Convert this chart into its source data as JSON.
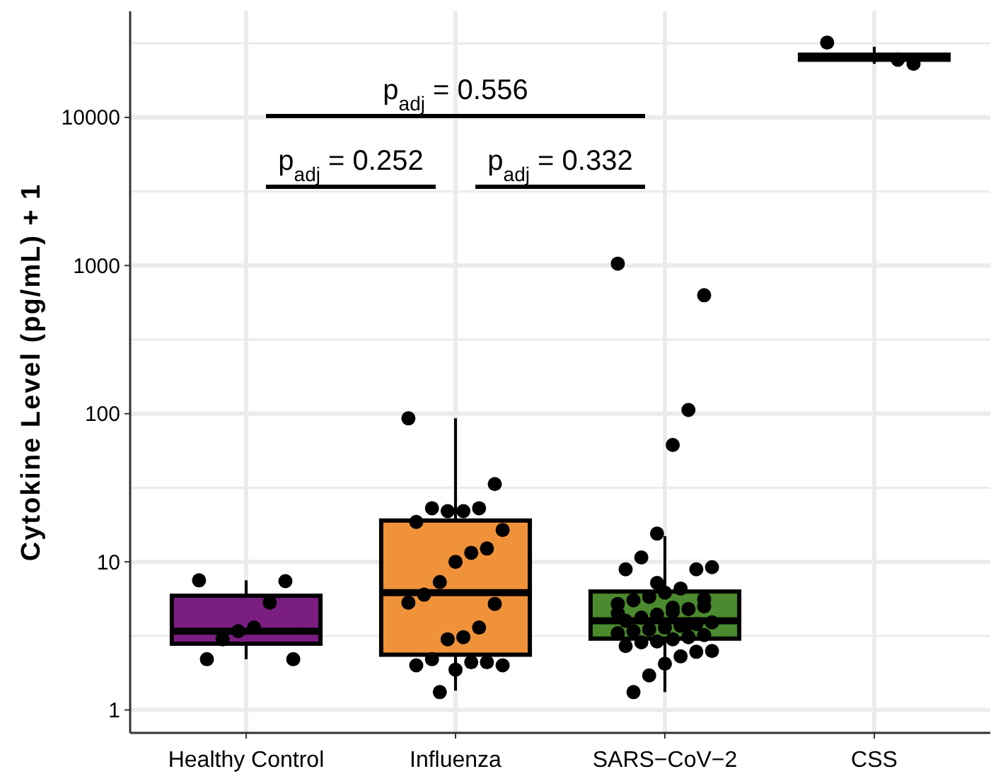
{
  "chart_data": {
    "type": "box",
    "ylabel": "Cytokine Level (pg/mL) + 1",
    "categories": [
      "Healthy Control",
      "Influenza",
      "SARS−CoV−2",
      "CSS"
    ],
    "colors": [
      "#7b1e82",
      "#f0923a",
      "#4b8a2e",
      "#000000"
    ],
    "boxes": [
      {
        "low": 2.2,
        "q1": 2.8,
        "median": 3.4,
        "q3": 5.9,
        "high": 7.5
      },
      {
        "low": 1.35,
        "q1": 2.36,
        "median": 6.2,
        "q3": 19,
        "high": 93
      },
      {
        "low": 1.32,
        "q1": 3.03,
        "median": 4.0,
        "q3": 6.3,
        "high": 14.9
      },
      {
        "low": 23000,
        "q1": 24500,
        "median": 25500,
        "q3": 26500,
        "high": 30000
      }
    ],
    "series": [
      {
        "type": "scatter",
        "color": "#000000",
        "x": [
          "Healthy Control",
          "Healthy Control",
          "Healthy Control",
          "Healthy Control",
          "Healthy Control",
          "Healthy Control",
          "Healthy Control",
          "Healthy Control",
          "Influenza",
          "Influenza",
          "Influenza",
          "Influenza",
          "Influenza",
          "Influenza",
          "Influenza",
          "Influenza",
          "Influenza",
          "Influenza",
          "Influenza",
          "Influenza",
          "Influenza",
          "Influenza",
          "Influenza",
          "Influenza",
          "Influenza",
          "Influenza",
          "Influenza",
          "Influenza",
          "Influenza",
          "Influenza",
          "Influenza",
          "Influenza",
          "Influenza",
          "SARS−CoV−2",
          "SARS−CoV−2",
          "SARS−CoV−2",
          "SARS−CoV−2",
          "SARS−CoV−2",
          "SARS−CoV−2",
          "SARS−CoV−2",
          "SARS−CoV−2",
          "SARS−CoV−2",
          "SARS−CoV−2",
          "SARS−CoV−2",
          "SARS−CoV−2",
          "SARS−CoV−2",
          "SARS−CoV−2",
          "SARS−CoV−2",
          "SARS−CoV−2",
          "SARS−CoV−2",
          "SARS−CoV−2",
          "SARS−CoV−2",
          "SARS−CoV−2",
          "SARS−CoV−2",
          "SARS−CoV−2",
          "SARS−CoV−2",
          "SARS−CoV−2",
          "SARS−CoV−2",
          "SARS−CoV−2",
          "SARS−CoV−2",
          "SARS−CoV−2",
          "SARS−CoV−2",
          "SARS−CoV−2",
          "SARS−CoV−2",
          "SARS−CoV−2",
          "SARS−CoV−2",
          "SARS−CoV−2",
          "SARS−CoV−2",
          "SARS−CoV−2",
          "SARS−CoV−2",
          "SARS−CoV−2",
          "SARS−CoV−2",
          "SARS−CoV−2",
          "SARS−CoV−2",
          "SARS−CoV−2",
          "SARS−CoV−2",
          "SARS−CoV−2",
          "CSS",
          "CSS",
          "CSS"
        ],
        "values": [
          7.5,
          7.4,
          5.3,
          3.6,
          3.4,
          3.0,
          2.2,
          2.2,
          93,
          33.5,
          23,
          22,
          22,
          23,
          18.6,
          16.4,
          12.3,
          11.5,
          10,
          7.3,
          6.0,
          5.3,
          5.2,
          3.6,
          3.1,
          3.0,
          2.2,
          2.0,
          2.0,
          2.1,
          2.1,
          1.87,
          1.32,
          1030,
          630,
          106,
          61.5,
          15.5,
          10.7,
          8.9,
          9.2,
          8.9,
          6.6,
          6.2,
          5.8,
          5.5,
          5.2,
          5.0,
          4.8,
          4.6,
          4.4,
          4.2,
          4.0,
          3.9,
          3.8,
          3.7,
          3.6,
          3.5,
          3.4,
          3.3,
          3.2,
          3.1,
          3.0,
          2.9,
          2.86,
          2.7,
          2.5,
          2.47,
          2.3,
          2.05,
          1.71,
          1.32,
          4.5,
          5.6,
          3.8,
          4.9,
          7.2,
          32000,
          23000,
          24500
        ]
      }
    ],
    "ylim": [
      0.7,
      52000
    ],
    "yticks": [
      1,
      10,
      100,
      1000,
      10000
    ],
    "log": true,
    "grid": true,
    "annotations": [
      "p$_{adj}$ = 0.556",
      "p$_{adj}$ = 0.252",
      "p$_{adj}$ = 0.332"
    ]
  }
}
